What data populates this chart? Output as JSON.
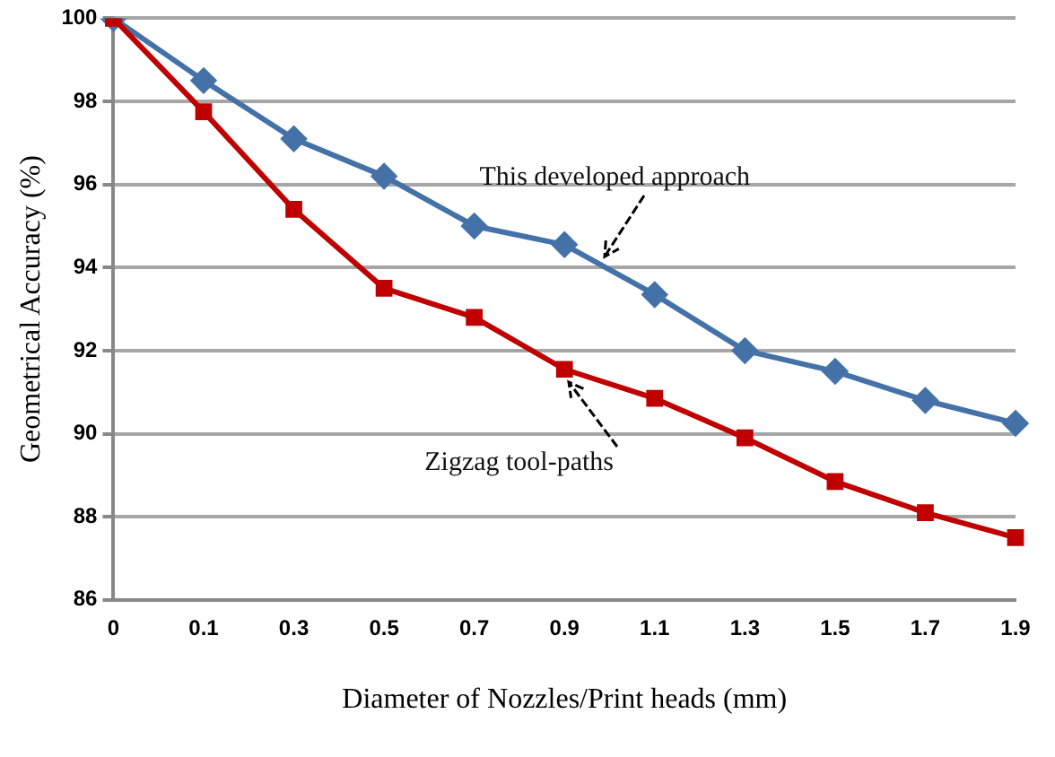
{
  "chart_data": {
    "type": "line",
    "xlabel": "Diameter of Nozzles/Print heads (mm)",
    "ylabel": "Geometrical Accuracy (%)",
    "categories": [
      "0",
      "0.1",
      "0.3",
      "0.5",
      "0.7",
      "0.9",
      "1.1",
      "1.3",
      "1.5",
      "1.7",
      "1.9"
    ],
    "ylim": [
      86,
      100
    ],
    "yticks": [
      86,
      88,
      90,
      92,
      94,
      96,
      98,
      100
    ],
    "grid": "y",
    "legend": false,
    "series": [
      {
        "name": "This developed approach",
        "color": "#4472a8",
        "marker": "diamond",
        "values": [
          100,
          98.5,
          97.1,
          96.2,
          95.0,
          94.55,
          93.35,
          92.0,
          91.5,
          90.8,
          90.25
        ]
      },
      {
        "name": "Zigzag tool-paths",
        "color": "#c00000",
        "marker": "square",
        "values": [
          100,
          97.75,
          95.4,
          93.5,
          92.8,
          91.55,
          90.85,
          89.9,
          88.85,
          88.1,
          87.5
        ]
      }
    ]
  }
}
